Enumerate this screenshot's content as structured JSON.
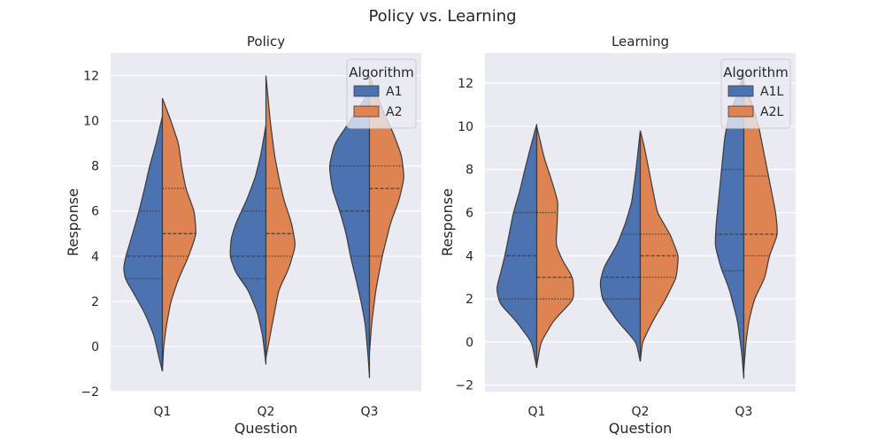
{
  "figure": {
    "suptitle": "Policy vs. Learning"
  },
  "chart_data": [
    {
      "type": "violin",
      "title": "Policy",
      "xlabel": "Question",
      "ylabel": "Response",
      "categories": [
        "Q1",
        "Q2",
        "Q3"
      ],
      "ylim": [
        -2,
        13
      ],
      "yticks": [
        -2,
        0,
        2,
        4,
        6,
        8,
        10,
        12
      ],
      "legend": {
        "title": "Algorithm",
        "placement": "top-right",
        "entries": [
          "A1",
          "A2"
        ]
      },
      "series": [
        {
          "name": "A1",
          "color": "#4c72b0",
          "groups": [
            {
              "range": [
                -1.1,
                10.2
              ],
              "quartiles": [
                3,
                4,
                6
              ],
              "density": [
                [
                  -1.1,
                  0.0
                ],
                [
                  -0.5,
                  0.08
                ],
                [
                  0.5,
                  0.2
                ],
                [
                  1.5,
                  0.42
                ],
                [
                  2.5,
                  0.72
                ],
                [
                  3.0,
                  0.88
                ],
                [
                  3.5,
                  0.92
                ],
                [
                  4.0,
                  0.86
                ],
                [
                  5.0,
                  0.7
                ],
                [
                  6.0,
                  0.55
                ],
                [
                  7.0,
                  0.42
                ],
                [
                  8.0,
                  0.3
                ],
                [
                  9.0,
                  0.15
                ],
                [
                  10.2,
                  0.0
                ]
              ]
            },
            {
              "range": [
                -0.8,
                9.8
              ],
              "quartiles": [
                3,
                4,
                6
              ],
              "density": [
                [
                  -0.8,
                  0.0
                ],
                [
                  0.5,
                  0.08
                ],
                [
                  1.5,
                  0.2
                ],
                [
                  2.5,
                  0.42
                ],
                [
                  3.3,
                  0.72
                ],
                [
                  4.0,
                  0.85
                ],
                [
                  4.8,
                  0.82
                ],
                [
                  5.5,
                  0.7
                ],
                [
                  6.5,
                  0.45
                ],
                [
                  7.5,
                  0.25
                ],
                [
                  8.5,
                  0.12
                ],
                [
                  9.8,
                  0.0
                ]
              ]
            },
            {
              "range": [
                -1.4,
                11.5
              ],
              "quartiles": [
                4,
                6,
                8
              ],
              "density": [
                [
                  -1.4,
                  0.0
                ],
                [
                  -0.5,
                  0.03
                ],
                [
                  1.0,
                  0.1
                ],
                [
                  2.0,
                  0.2
                ],
                [
                  3.0,
                  0.32
                ],
                [
                  4.0,
                  0.45
                ],
                [
                  5.0,
                  0.55
                ],
                [
                  6.0,
                  0.7
                ],
                [
                  7.0,
                  0.88
                ],
                [
                  8.0,
                  0.95
                ],
                [
                  9.0,
                  0.82
                ],
                [
                  10.0,
                  0.45
                ],
                [
                  11.0,
                  0.1
                ],
                [
                  11.5,
                  0.0
                ]
              ]
            }
          ]
        },
        {
          "name": "A2",
          "color": "#dd8452",
          "groups": [
            {
              "range": [
                -1.1,
                11.0
              ],
              "quartiles": [
                4,
                5,
                7
              ],
              "density": [
                [
                  -1.1,
                  0.0
                ],
                [
                  0.0,
                  0.03
                ],
                [
                  1.0,
                  0.1
                ],
                [
                  2.0,
                  0.2
                ],
                [
                  3.0,
                  0.38
                ],
                [
                  4.0,
                  0.62
                ],
                [
                  5.0,
                  0.8
                ],
                [
                  6.0,
                  0.75
                ],
                [
                  7.0,
                  0.55
                ],
                [
                  8.0,
                  0.45
                ],
                [
                  9.0,
                  0.38
                ],
                [
                  10.0,
                  0.2
                ],
                [
                  11.0,
                  0.0
                ]
              ]
            },
            {
              "range": [
                -0.5,
                12.0
              ],
              "quartiles": [
                4,
                5,
                7
              ],
              "density": [
                [
                  -0.5,
                  0.0
                ],
                [
                  0.5,
                  0.1
                ],
                [
                  1.5,
                  0.2
                ],
                [
                  2.5,
                  0.3
                ],
                [
                  3.5,
                  0.55
                ],
                [
                  4.5,
                  0.7
                ],
                [
                  5.5,
                  0.6
                ],
                [
                  6.5,
                  0.42
                ],
                [
                  7.5,
                  0.3
                ],
                [
                  8.5,
                  0.2
                ],
                [
                  10.0,
                  0.1
                ],
                [
                  12.0,
                  0.0
                ]
              ]
            },
            {
              "range": [
                -0.3,
                12.0
              ],
              "quartiles": [
                4,
                7,
                8
              ],
              "density": [
                [
                  -0.3,
                  0.0
                ],
                [
                  1.0,
                  0.05
                ],
                [
                  2.5,
                  0.15
                ],
                [
                  4.0,
                  0.3
                ],
                [
                  5.5,
                  0.5
                ],
                [
                  6.5,
                  0.7
                ],
                [
                  7.5,
                  0.82
                ],
                [
                  8.5,
                  0.75
                ],
                [
                  9.5,
                  0.55
                ],
                [
                  10.5,
                  0.3
                ],
                [
                  11.5,
                  0.1
                ],
                [
                  12.0,
                  0.0
                ]
              ]
            }
          ]
        }
      ]
    },
    {
      "type": "violin",
      "title": "Learning",
      "xlabel": "Question",
      "ylabel": "Response",
      "categories": [
        "Q1",
        "Q2",
        "Q3"
      ],
      "ylim": [
        -2.3,
        13.4
      ],
      "yticks": [
        -2,
        0,
        2,
        4,
        6,
        8,
        10,
        12
      ],
      "legend": {
        "title": "Algorithm",
        "placement": "top-right",
        "entries": [
          "A1L",
          "A2L"
        ]
      },
      "series": [
        {
          "name": "A1L",
          "color": "#4c72b0",
          "groups": [
            {
              "range": [
                -1.2,
                10.1
              ],
              "quartiles": [
                2,
                4,
                6
              ],
              "density": [
                [
                  -1.2,
                  0.0
                ],
                [
                  0.0,
                  0.12
                ],
                [
                  1.0,
                  0.5
                ],
                [
                  1.8,
                  0.88
                ],
                [
                  2.5,
                  0.95
                ],
                [
                  3.2,
                  0.85
                ],
                [
                  4.0,
                  0.75
                ],
                [
                  5.0,
                  0.65
                ],
                [
                  6.0,
                  0.55
                ],
                [
                  7.0,
                  0.4
                ],
                [
                  8.0,
                  0.28
                ],
                [
                  9.0,
                  0.15
                ],
                [
                  10.1,
                  0.0
                ]
              ]
            },
            {
              "range": [
                -0.9,
                9.8
              ],
              "quartiles": [
                2,
                3,
                5
              ],
              "density": [
                [
                  -0.9,
                  0.0
                ],
                [
                  0.0,
                  0.1
                ],
                [
                  1.0,
                  0.55
                ],
                [
                  2.0,
                  0.9
                ],
                [
                  2.8,
                  0.95
                ],
                [
                  3.5,
                  0.85
                ],
                [
                  4.5,
                  0.55
                ],
                [
                  5.5,
                  0.35
                ],
                [
                  6.5,
                  0.2
                ],
                [
                  8.0,
                  0.1
                ],
                [
                  9.8,
                  0.0
                ]
              ]
            },
            {
              "range": [
                -1.7,
                12.5
              ],
              "quartiles": [
                3.3,
                5,
                8
              ],
              "density": [
                [
                  -1.7,
                  0.0
                ],
                [
                  -0.5,
                  0.05
                ],
                [
                  1.0,
                  0.15
                ],
                [
                  2.5,
                  0.35
                ],
                [
                  3.5,
                  0.55
                ],
                [
                  4.5,
                  0.68
                ],
                [
                  5.5,
                  0.65
                ],
                [
                  6.5,
                  0.6
                ],
                [
                  7.5,
                  0.55
                ],
                [
                  8.5,
                  0.5
                ],
                [
                  9.5,
                  0.45
                ],
                [
                  10.5,
                  0.35
                ],
                [
                  11.5,
                  0.15
                ],
                [
                  12.5,
                  0.0
                ]
              ]
            }
          ]
        },
        {
          "name": "A2L",
          "color": "#dd8452",
          "groups": [
            {
              "range": [
                -1.1,
                10.0
              ],
              "quartiles": [
                2,
                3,
                6
              ],
              "density": [
                [
                  -1.1,
                  0.0
                ],
                [
                  0.0,
                  0.1
                ],
                [
                  1.0,
                  0.4
                ],
                [
                  2.0,
                  0.88
                ],
                [
                  3.0,
                  0.85
                ],
                [
                  3.8,
                  0.6
                ],
                [
                  4.5,
                  0.45
                ],
                [
                  5.5,
                  0.48
                ],
                [
                  6.5,
                  0.5
                ],
                [
                  7.5,
                  0.35
                ],
                [
                  8.5,
                  0.18
                ],
                [
                  10.0,
                  0.0
                ]
              ]
            },
            {
              "range": [
                -0.9,
                9.8
              ],
              "quartiles": [
                3,
                4,
                5
              ],
              "density": [
                [
                  -0.9,
                  0.0
                ],
                [
                  0.0,
                  0.05
                ],
                [
                  1.0,
                  0.3
                ],
                [
                  2.0,
                  0.6
                ],
                [
                  3.0,
                  0.85
                ],
                [
                  4.0,
                  0.9
                ],
                [
                  5.0,
                  0.7
                ],
                [
                  6.0,
                  0.4
                ],
                [
                  7.0,
                  0.3
                ],
                [
                  8.0,
                  0.2
                ],
                [
                  9.0,
                  0.1
                ],
                [
                  9.8,
                  0.0
                ]
              ]
            },
            {
              "range": [
                -1.3,
                12.0
              ],
              "quartiles": [
                4,
                5,
                7.7
              ],
              "density": [
                [
                  -1.3,
                  0.0
                ],
                [
                  0.0,
                  0.05
                ],
                [
                  1.0,
                  0.12
                ],
                [
                  2.0,
                  0.25
                ],
                [
                  3.0,
                  0.5
                ],
                [
                  4.0,
                  0.6
                ],
                [
                  5.0,
                  0.8
                ],
                [
                  6.0,
                  0.75
                ],
                [
                  7.0,
                  0.65
                ],
                [
                  8.0,
                  0.55
                ],
                [
                  9.0,
                  0.45
                ],
                [
                  10.0,
                  0.35
                ],
                [
                  11.0,
                  0.2
                ],
                [
                  12.0,
                  0.0
                ]
              ]
            }
          ]
        }
      ]
    }
  ]
}
